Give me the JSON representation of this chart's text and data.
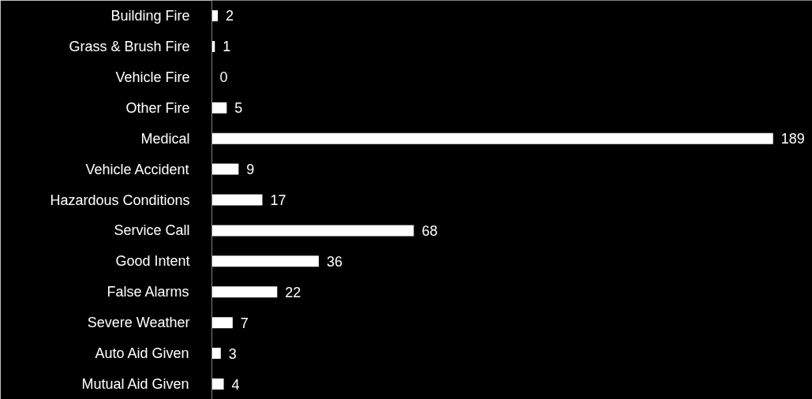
{
  "chart_data": {
    "type": "bar",
    "orientation": "horizontal",
    "categories": [
      "Building Fire",
      "Grass & Brush Fire",
      "Vehicle Fire",
      "Other Fire",
      "Medical",
      "Vehicle Accident",
      "Hazardous Conditions",
      "Service Call",
      "Good Intent",
      "False Alarms",
      "Severe Weather",
      "Auto Aid Given",
      "Mutual Aid Given"
    ],
    "values": [
      2,
      1,
      0,
      5,
      189,
      9,
      17,
      68,
      36,
      22,
      7,
      3,
      4
    ],
    "color": "#ffffff",
    "data_labels": true,
    "grid": false
  }
}
